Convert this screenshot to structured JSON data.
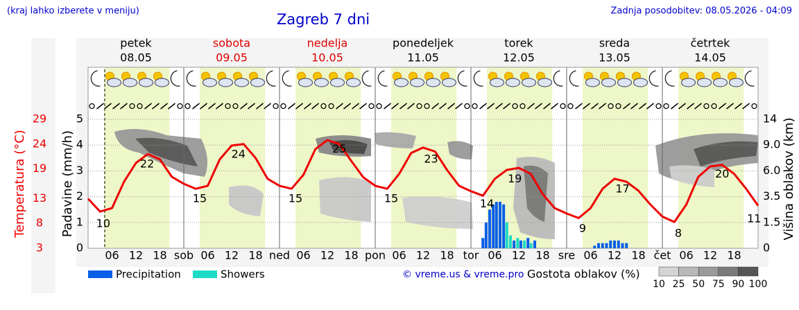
{
  "header": {
    "note": "(kraj lahko izberete v meniju)",
    "title": "Zagreb 7 dni",
    "updated": "Zadnja posodobitev: 08.05.2026 - 04:09"
  },
  "chart_data": {
    "type": "meteogram",
    "days": [
      {
        "name": "petek",
        "date": "08.05",
        "color": "#000000"
      },
      {
        "name": "sobota",
        "date": "09.05",
        "color": "#e00000"
      },
      {
        "name": "nedelja",
        "date": "10.05",
        "color": "#e00000"
      },
      {
        "name": "ponedeljek",
        "date": "11.05",
        "color": "#000000"
      },
      {
        "name": "torek",
        "date": "12.05",
        "color": "#000000"
      },
      {
        "name": "sreda",
        "date": "13.05",
        "color": "#000000"
      },
      {
        "name": "četrtek",
        "date": "14.05",
        "color": "#000000"
      }
    ],
    "xlim": [
      0,
      168
    ],
    "xticks": [
      {
        "value": 6,
        "label": "06"
      },
      {
        "value": 12,
        "label": "12"
      },
      {
        "value": 18,
        "label": "18"
      },
      {
        "value": 24,
        "label": "sob"
      },
      {
        "value": 30,
        "label": "06"
      },
      {
        "value": 36,
        "label": "12"
      },
      {
        "value": 42,
        "label": "18"
      },
      {
        "value": 48,
        "label": "ned"
      },
      {
        "value": 54,
        "label": "06"
      },
      {
        "value": 60,
        "label": "12"
      },
      {
        "value": 66,
        "label": "18"
      },
      {
        "value": 72,
        "label": "pon"
      },
      {
        "value": 78,
        "label": "06"
      },
      {
        "value": 84,
        "label": "12"
      },
      {
        "value": 90,
        "label": "18"
      },
      {
        "value": 96,
        "label": "tor"
      },
      {
        "value": 102,
        "label": "06"
      },
      {
        "value": 108,
        "label": "12"
      },
      {
        "value": 114,
        "label": "18"
      },
      {
        "value": 120,
        "label": "sre"
      },
      {
        "value": 126,
        "label": "06"
      },
      {
        "value": 132,
        "label": "12"
      },
      {
        "value": 138,
        "label": "18"
      },
      {
        "value": 144,
        "label": "čet"
      },
      {
        "value": 150,
        "label": "06"
      },
      {
        "value": 156,
        "label": "12"
      },
      {
        "value": 162,
        "label": "18"
      }
    ],
    "ylabel": "Padavine (mm/h)",
    "ylim": [
      0,
      5
    ],
    "yticks": [
      0,
      1,
      2,
      3,
      4,
      5
    ],
    "grid": true,
    "y2label": "Višina oblakov (km)",
    "y2ticks": [
      0,
      1.5,
      3.5,
      {
        "value": 6,
        "label": "6.0"
      },
      {
        "value": 9,
        "label": "9.0"
      },
      14
    ],
    "temperature": {
      "label": "Temperatura (°C)",
      "color": "#ee0000",
      "lim": [
        3,
        29
      ],
      "ticks": [
        3,
        8,
        13,
        19,
        24,
        29
      ],
      "x": [
        0,
        3,
        6,
        9,
        12,
        15,
        18,
        21,
        24,
        27,
        30,
        33,
        36,
        39,
        42,
        45,
        48,
        51,
        54,
        57,
        60,
        63,
        66,
        69,
        72,
        75,
        78,
        81,
        84,
        87,
        90,
        93,
        96,
        99,
        102,
        105,
        108,
        111,
        114,
        117,
        120,
        123,
        126,
        129,
        132,
        135,
        138,
        141,
        144,
        147,
        150,
        153,
        156,
        159,
        162,
        165,
        168
      ],
      "values": [
        13,
        10.4,
        11.1,
        16.4,
        20.2,
        22,
        20.9,
        17.4,
        16,
        15,
        15.6,
        20.9,
        23.7,
        24,
        21.2,
        17,
        15.6,
        15,
        17.8,
        23,
        24.8,
        24,
        20.6,
        17.3,
        15.6,
        15,
        18,
        22.2,
        23.3,
        22.5,
        18.8,
        15.6,
        14.5,
        13.6,
        17,
        18.8,
        19.2,
        18,
        13.9,
        11.1,
        10,
        9.1,
        11.1,
        15,
        17,
        16.4,
        14.6,
        11.8,
        9.4,
        8.3,
        11.8,
        17.4,
        19.5,
        19.8,
        18,
        15,
        11.6
      ],
      "label_x": [
        3.8,
        14.8,
        28,
        37.7,
        52,
        63,
        76,
        86,
        100,
        107,
        124,
        134,
        148,
        159,
        167
      ],
      "label_values": [
        10,
        22,
        15,
        24,
        15,
        25,
        15,
        23,
        14,
        19,
        9,
        17,
        8,
        20,
        11
      ]
    },
    "series": [
      {
        "name": "Precipitation",
        "color": "#0a5fe8",
        "x": [
          99,
          99.8,
          100.7,
          101.6,
          102.4,
          103.3,
          104.2,
          106.8,
          108.5,
          110.3,
          112,
          127,
          128,
          129,
          130,
          131,
          132,
          133,
          134,
          135
        ],
        "values": [
          0.4,
          1.0,
          1.5,
          1.7,
          1.8,
          1.8,
          1.7,
          0.3,
          0.3,
          0.4,
          0.3,
          0.1,
          0.2,
          0.2,
          0.2,
          0.3,
          0.3,
          0.3,
          0.2,
          0.2
        ]
      },
      {
        "name": "Showers",
        "color": "#1ddbc4",
        "x": [
          105,
          105.9,
          107.7,
          109.4,
          111.1
        ],
        "values": [
          1.0,
          0.5,
          0.4,
          0.3,
          0.2
        ]
      }
    ],
    "credit": "© vreme.us & vreme.pro",
    "cloud_legend": {
      "title": "Gostota oblakov (%)",
      "ticks": [
        10,
        25,
        50,
        75,
        90,
        100
      ],
      "colors": [
        "#d4d4d4",
        "#b8b8b8",
        "#9a9a9a",
        "#7a7a7a",
        "#555555"
      ]
    }
  }
}
